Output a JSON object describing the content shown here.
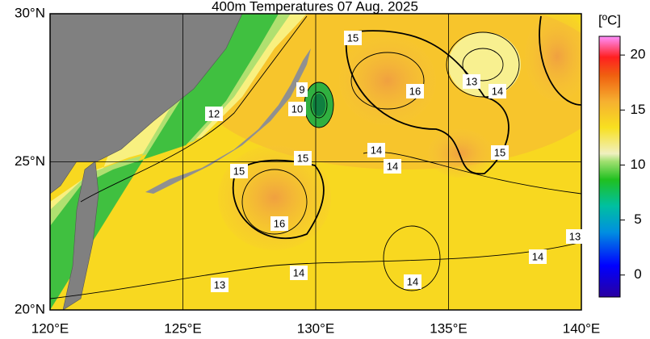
{
  "title": "400m Temperatures  07 Aug. 2025",
  "map": {
    "lon_range": [
      120,
      140
    ],
    "lat_range": [
      20,
      30
    ],
    "lon_ticks": [
      {
        "value": 120,
        "label": "120°E"
      },
      {
        "value": 125,
        "label": "125°E"
      },
      {
        "value": 130,
        "label": "130°E"
      },
      {
        "value": 135,
        "label": "135°E"
      },
      {
        "value": 140,
        "label": "140°E"
      }
    ],
    "lat_ticks": [
      {
        "value": 20,
        "label": "20°N"
      },
      {
        "value": 25,
        "label": "25°N"
      },
      {
        "value": 30,
        "label": "30°N"
      }
    ]
  },
  "colorbar": {
    "unit": "[ºC]",
    "range": [
      -2,
      21.7
    ],
    "ticks": [
      0,
      5,
      10,
      15,
      20
    ]
  },
  "contour_labels": [
    15,
    9,
    10,
    12,
    16,
    13,
    14,
    15,
    14,
    14,
    15,
    15,
    16,
    13,
    14,
    14,
    13,
    14
  ]
}
